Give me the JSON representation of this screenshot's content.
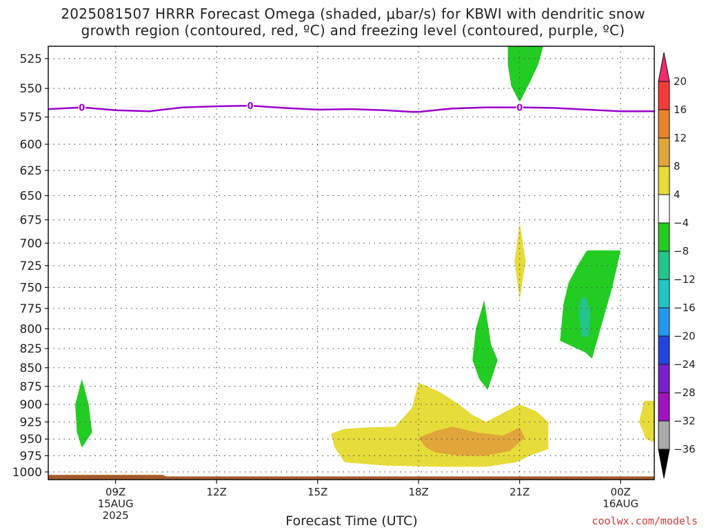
{
  "title_line1": "2025081507 HRRR Forecast Omega (shaded, μbar/s) for KBWI with dendritic snow",
  "title_line2": "growth region (contoured, red, ºC) and freezing level (contoured, purple, ºC)",
  "footer": "coolwx.com/models",
  "chart_data": {
    "type": "heatmap",
    "title": "2025081507 HRRR Forecast Omega (shaded, μbar/s) for KBWI with dendritic snow growth region (contoured, red, ºC) and freezing level (contoured, purple, ºC)",
    "xlabel": "Forecast Time (UTC)",
    "ylabel": "",
    "x_ticks": [
      {
        "hour": 9,
        "lines": [
          "09Z",
          "15AUG",
          "2025"
        ]
      },
      {
        "hour": 12,
        "lines": [
          "12Z"
        ]
      },
      {
        "hour": 15,
        "lines": [
          "15Z"
        ]
      },
      {
        "hour": 18,
        "lines": [
          "18Z"
        ]
      },
      {
        "hour": 21,
        "lines": [
          "21Z"
        ]
      },
      {
        "hour": 24,
        "lines": [
          "00Z",
          "16AUG"
        ]
      }
    ],
    "xlim": [
      7,
      25
    ],
    "y_ticks": [
      525,
      550,
      575,
      600,
      625,
      650,
      675,
      700,
      725,
      750,
      775,
      800,
      825,
      850,
      875,
      900,
      925,
      950,
      975,
      1000
    ],
    "ylim": [
      515,
      1012
    ],
    "y_scale": "log",
    "y_inverted": true,
    "grid": true,
    "colorbar": {
      "labels": [
        "20",
        "16",
        "12",
        "8",
        "4",
        "−4",
        "−8",
        "−12",
        "−16",
        "−20",
        "−24",
        "−28",
        "−32",
        "−36"
      ],
      "colors": [
        "#f02b6f",
        "#f23c3c",
        "#e8822b",
        "#e0a63a",
        "#e6dc3a",
        "#ffffff",
        "#22cc22",
        "#22c58a",
        "#22c4c4",
        "#2299ee",
        "#2244dd",
        "#7722cc",
        "#a012c0",
        "#aaaaaa",
        "#000000"
      ]
    },
    "omega_regions": [
      {
        "level": "-4",
        "color": "#22cc22",
        "points": [
          [
            20.65,
            515
          ],
          [
            21.7,
            515
          ],
          [
            21.55,
            530
          ],
          [
            21.3,
            545
          ],
          [
            21.0,
            562
          ],
          [
            20.75,
            548
          ],
          [
            20.65,
            530
          ]
        ]
      },
      {
        "level": "4",
        "color": "#e6dc3a",
        "points": [
          [
            21.0,
            678
          ],
          [
            21.18,
            720
          ],
          [
            21.0,
            765
          ],
          [
            20.85,
            720
          ]
        ]
      },
      {
        "level": "-4",
        "color": "#22cc22",
        "points": [
          [
            23.0,
            708
          ],
          [
            24.0,
            708
          ],
          [
            23.75,
            750
          ],
          [
            23.4,
            800
          ],
          [
            23.15,
            838
          ],
          [
            22.95,
            830
          ],
          [
            22.2,
            815
          ],
          [
            22.3,
            770
          ],
          [
            22.45,
            745
          ],
          [
            22.75,
            723
          ]
        ]
      },
      {
        "level": "-8",
        "color": "#22c58a",
        "points": [
          [
            22.95,
            760
          ],
          [
            23.1,
            778
          ],
          [
            23.05,
            810
          ],
          [
            22.85,
            810
          ],
          [
            22.75,
            780
          ],
          [
            22.8,
            765
          ]
        ]
      },
      {
        "level": "-4",
        "color": "#22cc22",
        "points": [
          [
            19.95,
            765
          ],
          [
            20.15,
            820
          ],
          [
            20.35,
            840
          ],
          [
            20.05,
            880
          ],
          [
            19.8,
            865
          ],
          [
            19.6,
            840
          ],
          [
            19.7,
            800
          ]
        ]
      },
      {
        "level": "-4",
        "color": "#22cc22",
        "points": [
          [
            8.0,
            865
          ],
          [
            8.2,
            900
          ],
          [
            8.3,
            940
          ],
          [
            8.0,
            963
          ],
          [
            7.85,
            940
          ],
          [
            7.8,
            900
          ]
        ]
      },
      {
        "level": "4",
        "color": "#e6dc3a",
        "points": [
          [
            18.0,
            870
          ],
          [
            18.6,
            882
          ],
          [
            19.2,
            900
          ],
          [
            19.6,
            915
          ],
          [
            20.0,
            925
          ],
          [
            20.4,
            915
          ],
          [
            21.0,
            900
          ],
          [
            21.5,
            910
          ],
          [
            21.85,
            925
          ],
          [
            21.85,
            965
          ],
          [
            21.3,
            975
          ],
          [
            20.9,
            985
          ],
          [
            20.0,
            992
          ],
          [
            18.6,
            992
          ],
          [
            17.0,
            990
          ],
          [
            15.8,
            985
          ],
          [
            15.5,
            962
          ],
          [
            15.4,
            942
          ],
          [
            15.8,
            935
          ],
          [
            16.5,
            933
          ],
          [
            17.3,
            932
          ],
          [
            17.8,
            905
          ]
        ]
      },
      {
        "level": "8",
        "color": "#e0a63a",
        "points": [
          [
            18.0,
            948
          ],
          [
            18.5,
            938
          ],
          [
            19.0,
            932
          ],
          [
            19.7,
            940
          ],
          [
            20.5,
            945
          ],
          [
            21.0,
            933
          ],
          [
            21.15,
            948
          ],
          [
            20.7,
            968
          ],
          [
            20.0,
            975
          ],
          [
            19.2,
            975
          ],
          [
            18.5,
            970
          ],
          [
            18.2,
            962
          ]
        ]
      },
      {
        "level": "4",
        "color": "#e6dc3a",
        "points": [
          [
            25.0,
            895
          ],
          [
            25.0,
            955
          ],
          [
            24.75,
            950
          ],
          [
            24.55,
            925
          ],
          [
            24.7,
            895
          ]
        ]
      }
    ],
    "freezing_level": {
      "label": "0",
      "color": "#9900cc",
      "points": [
        [
          7,
          568
        ],
        [
          8,
          566.5
        ],
        [
          9,
          569
        ],
        [
          10,
          570
        ],
        [
          11,
          566.5
        ],
        [
          12,
          565.5
        ],
        [
          13,
          565
        ],
        [
          14,
          567
        ],
        [
          15,
          568.5
        ],
        [
          16,
          568
        ],
        [
          17,
          569
        ],
        [
          17.8,
          570.5
        ],
        [
          18,
          570.5
        ],
        [
          19,
          567.5
        ],
        [
          20,
          566.5
        ],
        [
          21,
          566.5
        ],
        [
          22,
          567
        ],
        [
          23,
          568.5
        ],
        [
          24,
          570
        ],
        [
          25,
          570
        ]
      ],
      "label_hours": [
        8.0,
        13.0,
        21.0
      ]
    },
    "terrain": {
      "color": "#a55a2b",
      "top_hpa": [
        [
          7,
          1004.5
        ],
        [
          10.4,
          1004.5
        ],
        [
          10.5,
          1007
        ],
        [
          25,
          1007
        ]
      ]
    }
  }
}
